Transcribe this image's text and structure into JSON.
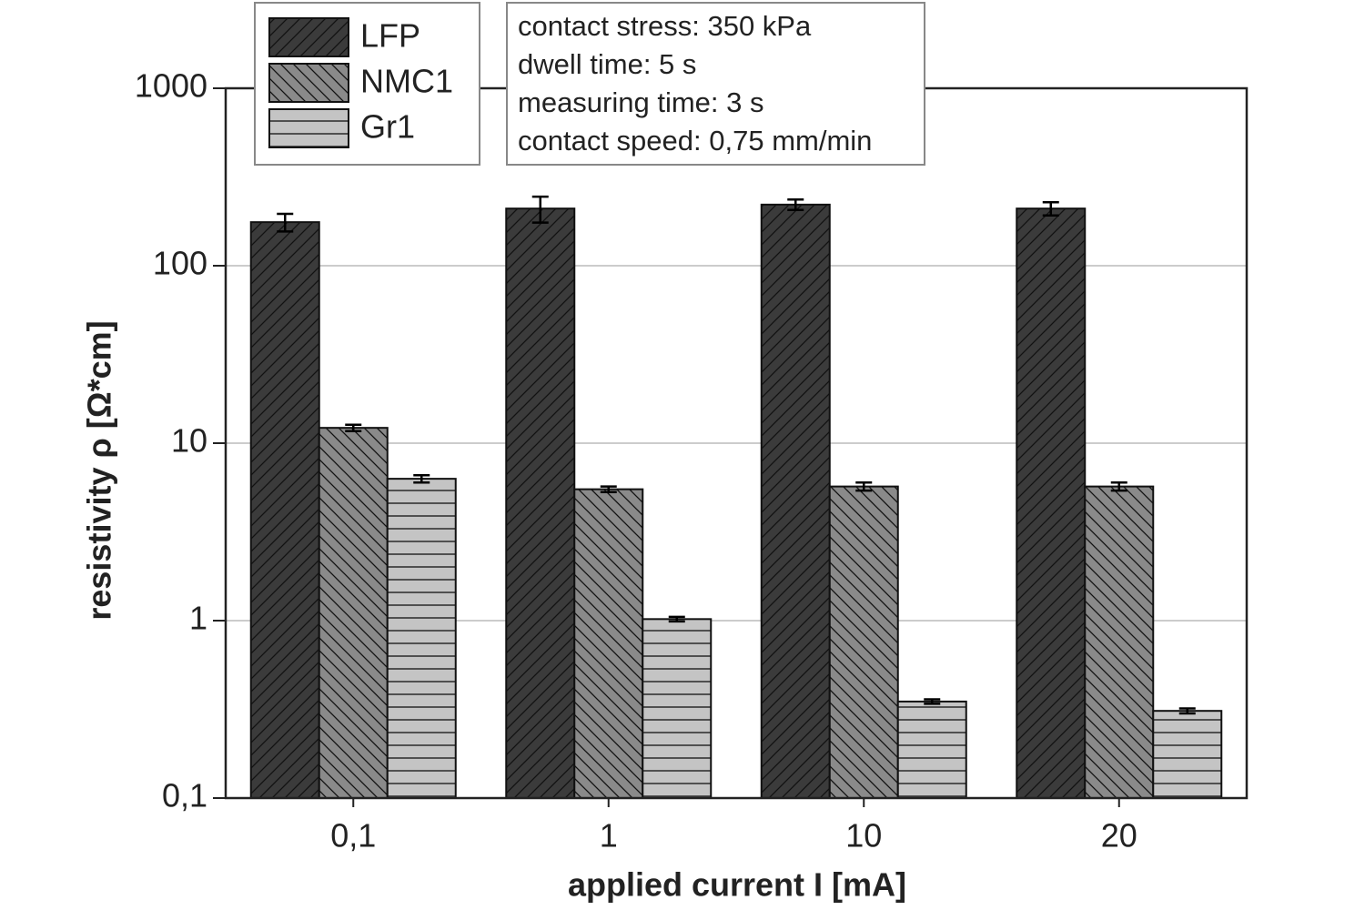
{
  "chart_data": {
    "type": "bar",
    "x_label": "applied current I [mA]",
    "y_label": "resistivity ρ [Ω*cm]",
    "categories": [
      "0,1",
      "1",
      "10",
      "20"
    ],
    "series": [
      {
        "name": "LFP",
        "color": "#3b3b3b",
        "hatch": "/",
        "values": [
          176,
          210,
          221,
          210
        ],
        "errors": [
          20,
          35,
          15,
          18
        ]
      },
      {
        "name": "NMC1",
        "color": "#8a8a8a",
        "hatch": "\\",
        "values": [
          12.2,
          5.5,
          5.7,
          5.7
        ],
        "errors": [
          0.5,
          0.2,
          0.3,
          0.3
        ]
      },
      {
        "name": "Gr1",
        "color": "#c4c4c4",
        "hatch": "-",
        "values": [
          6.3,
          1.02,
          0.35,
          0.31
        ],
        "errors": [
          0.3,
          0.03,
          0.01,
          0.01
        ]
      }
    ],
    "log_y": true,
    "ylim": [
      0.1,
      1000
    ],
    "yticks": [
      {
        "value": 0.1,
        "label": "0,1"
      },
      1,
      10,
      100,
      1000
    ],
    "grid": true,
    "annotations": [
      "contact stress: 350 kPa",
      "dwell time: 5 s",
      "measuring time: 3 s",
      "contact speed: 0,75 mm/min"
    ]
  }
}
